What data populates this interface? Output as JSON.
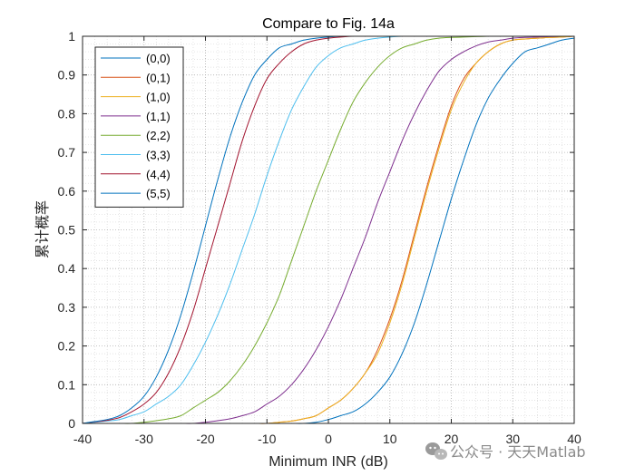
{
  "chart_data": {
    "type": "line",
    "title": "Compare to Fig. 14a",
    "xlabel": "Minimum INR (dB)",
    "ylabel": "累计概率",
    "xlim": [
      -40,
      40
    ],
    "ylim": [
      0,
      1
    ],
    "xticks": [
      -40,
      -30,
      -20,
      -10,
      0,
      10,
      20,
      30,
      40
    ],
    "yticks": [
      0,
      0.1,
      0.2,
      0.3,
      0.4,
      0.5,
      0.6,
      0.7,
      0.8,
      0.9,
      1
    ],
    "grid": "major and minor (dotted)",
    "legend_position": "top-left",
    "x": [
      -40,
      -38,
      -36,
      -34,
      -32,
      -30,
      -28,
      -26,
      -24,
      -22,
      -20,
      -18,
      -16,
      -14,
      -12,
      -10,
      -8,
      -6,
      -4,
      -2,
      0,
      2,
      4,
      6,
      8,
      10,
      12,
      14,
      16,
      18,
      20,
      22,
      24,
      26,
      28,
      30,
      32,
      34,
      36,
      38,
      40
    ],
    "series": [
      {
        "name": "(0,0)",
        "color": "#0072BD",
        "values": [
          0,
          0,
          0,
          0,
          0,
          0,
          0,
          0,
          0,
          0,
          0,
          0,
          0,
          0,
          0,
          0,
          0,
          0,
          0,
          0.003,
          0.01,
          0.02,
          0.03,
          0.05,
          0.08,
          0.12,
          0.18,
          0.26,
          0.36,
          0.47,
          0.58,
          0.68,
          0.77,
          0.84,
          0.89,
          0.93,
          0.96,
          0.97,
          0.98,
          0.99,
          0.995
        ]
      },
      {
        "name": "(0,1)",
        "color": "#D95319",
        "values": [
          0,
          0,
          0,
          0,
          0,
          0,
          0,
          0,
          0,
          0,
          0,
          0,
          0,
          0,
          0,
          0,
          0.003,
          0.006,
          0.012,
          0.02,
          0.04,
          0.06,
          0.09,
          0.13,
          0.19,
          0.27,
          0.37,
          0.49,
          0.61,
          0.72,
          0.82,
          0.89,
          0.93,
          0.96,
          0.98,
          0.99,
          0.993,
          0.995,
          0.997,
          0.998,
          1
        ]
      },
      {
        "name": "(1,0)",
        "color": "#EDB120",
        "values": [
          0,
          0,
          0,
          0,
          0,
          0,
          0,
          0,
          0,
          0,
          0,
          0,
          0,
          0,
          0,
          0,
          0.003,
          0.006,
          0.012,
          0.02,
          0.04,
          0.06,
          0.09,
          0.13,
          0.18,
          0.26,
          0.36,
          0.48,
          0.6,
          0.71,
          0.81,
          0.88,
          0.93,
          0.96,
          0.98,
          0.99,
          0.993,
          0.995,
          0.997,
          0.998,
          1
        ]
      },
      {
        "name": "(1,1)",
        "color": "#7E2F8E",
        "values": [
          0,
          0,
          0,
          0,
          0,
          0,
          0,
          0,
          0,
          0,
          0.003,
          0.007,
          0.012,
          0.02,
          0.03,
          0.05,
          0.07,
          0.1,
          0.14,
          0.19,
          0.25,
          0.32,
          0.4,
          0.48,
          0.57,
          0.65,
          0.73,
          0.8,
          0.86,
          0.91,
          0.94,
          0.96,
          0.975,
          0.985,
          0.99,
          0.995,
          0.997,
          0.998,
          0.999,
          1,
          1
        ]
      },
      {
        "name": "(2,2)",
        "color": "#77AC30",
        "values": [
          0,
          0,
          0,
          0,
          0,
          0.003,
          0.007,
          0.012,
          0.02,
          0.04,
          0.06,
          0.08,
          0.11,
          0.15,
          0.2,
          0.26,
          0.33,
          0.42,
          0.51,
          0.6,
          0.68,
          0.76,
          0.83,
          0.88,
          0.92,
          0.95,
          0.97,
          0.98,
          0.99,
          0.995,
          0.997,
          0.998,
          0.999,
          1,
          1,
          1,
          1,
          1,
          1,
          1,
          1
        ]
      },
      {
        "name": "(3,3)",
        "color": "#4DBEEE",
        "values": [
          0,
          0.003,
          0.006,
          0.01,
          0.02,
          0.03,
          0.05,
          0.07,
          0.1,
          0.15,
          0.21,
          0.28,
          0.36,
          0.45,
          0.54,
          0.64,
          0.73,
          0.81,
          0.87,
          0.92,
          0.95,
          0.97,
          0.98,
          0.99,
          0.995,
          0.998,
          1,
          1,
          1,
          1,
          1,
          1,
          1,
          1,
          1,
          1,
          1,
          1,
          1,
          1,
          1
        ]
      },
      {
        "name": "(4,4)",
        "color": "#A2142F",
        "values": [
          0,
          0.004,
          0.008,
          0.015,
          0.03,
          0.05,
          0.08,
          0.13,
          0.2,
          0.29,
          0.4,
          0.51,
          0.62,
          0.73,
          0.82,
          0.89,
          0.93,
          0.96,
          0.98,
          0.99,
          0.995,
          0.998,
          1,
          1,
          1,
          1,
          1,
          1,
          1,
          1,
          1,
          1,
          1,
          1,
          1,
          1,
          1,
          1,
          1,
          1,
          1
        ]
      },
      {
        "name": "(5,5)",
        "color": "#0072BD",
        "values": [
          0,
          0.005,
          0.01,
          0.02,
          0.04,
          0.07,
          0.12,
          0.19,
          0.28,
          0.39,
          0.51,
          0.63,
          0.74,
          0.83,
          0.9,
          0.94,
          0.97,
          0.98,
          0.99,
          0.995,
          0.998,
          1,
          1,
          1,
          1,
          1,
          1,
          1,
          1,
          1,
          1,
          1,
          1,
          1,
          1,
          1,
          1,
          1,
          1,
          1,
          1
        ]
      }
    ]
  },
  "watermark": "公众号 · 天天Matlab"
}
